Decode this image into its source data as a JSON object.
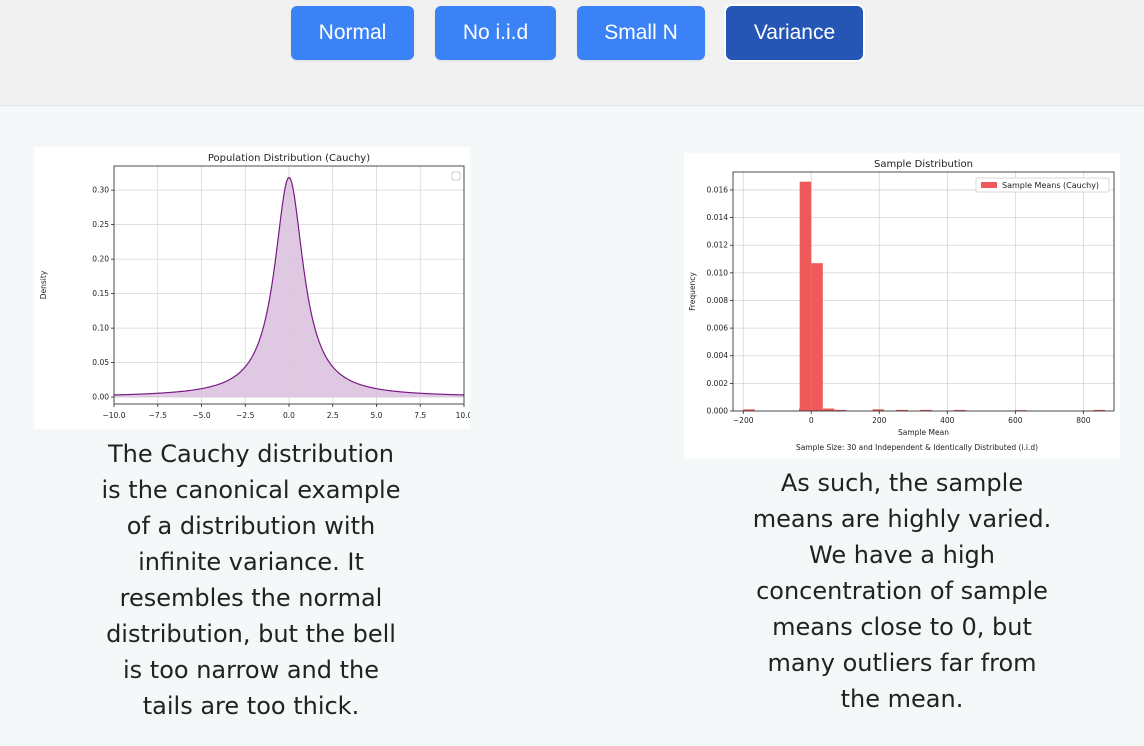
{
  "tabs": [
    {
      "label": "Normal",
      "active": false
    },
    {
      "label": "No i.i.d",
      "active": false
    },
    {
      "label": "Small N",
      "active": false
    },
    {
      "label": "Variance",
      "active": true
    }
  ],
  "colors": {
    "tab_button": "#3b82f6",
    "tab_button_active": "#2556b5",
    "cauchy_line": "#7b1a86",
    "cauchy_fill": "#dcc3df",
    "histogram_bar": "#ee5a5a"
  },
  "left": {
    "description_lines": [
      "The Cauchy distribution",
      "is the canonical example",
      "of a distribution with",
      "infinite variance. It",
      "resembles the normal",
      "distribution, but the bell",
      "is too narrow and the",
      "tails are too thick."
    ]
  },
  "right": {
    "description_lines": [
      "As such, the sample",
      "means are highly varied.",
      "We have a high",
      "concentration of sample",
      "means close to 0, but",
      "many outliers far from",
      "the mean."
    ]
  },
  "chart_data": [
    {
      "type": "area",
      "title": "Population Distribution (Cauchy)",
      "xlabel": "",
      "ylabel": "Density",
      "xlim": [
        -10,
        10
      ],
      "ylim": [
        -0.01,
        0.335
      ],
      "x_ticks": [
        -10.0,
        -7.5,
        -5.0,
        -2.5,
        0.0,
        2.5,
        5.0,
        7.5,
        10.0
      ],
      "x_tick_labels": [
        "−10.0",
        "−7.5",
        "−5.0",
        "−2.5",
        "0.0",
        "2.5",
        "5.0",
        "7.5",
        "10.0"
      ],
      "y_ticks": [
        0.0,
        0.05,
        0.1,
        0.15,
        0.2,
        0.25,
        0.3
      ],
      "y_tick_labels": [
        "0.00",
        "0.05",
        "0.10",
        "0.15",
        "0.20",
        "0.25",
        "0.30"
      ],
      "grid": true,
      "legend": "top-right (empty)",
      "series": [
        {
          "x": [
            -10,
            -8,
            -6,
            -5,
            -4,
            -3,
            -2.5,
            -2,
            -1.5,
            -1,
            -0.75,
            -0.5,
            -0.25,
            0,
            0.25,
            0.5,
            0.75,
            1,
            1.5,
            2,
            2.5,
            3,
            4,
            5,
            6,
            8,
            10
          ],
          "y": [
            0.0032,
            0.0049,
            0.0086,
            0.0122,
            0.0187,
            0.0318,
            0.0439,
            0.0637,
            0.0979,
            0.1592,
            0.2037,
            0.2546,
            0.2996,
            0.3183,
            0.2996,
            0.2546,
            0.2037,
            0.1592,
            0.0979,
            0.0637,
            0.0439,
            0.0318,
            0.0187,
            0.0122,
            0.0086,
            0.0049,
            0.0032
          ]
        }
      ]
    },
    {
      "type": "bar",
      "title": "Sample Distribution",
      "xlabel": "Sample Mean",
      "ylabel": "Frequency",
      "xlim": [
        -230,
        890
      ],
      "ylim": [
        0,
        0.0173
      ],
      "x_ticks": [
        -200,
        0,
        200,
        400,
        600,
        800
      ],
      "x_tick_labels": [
        "−200",
        "0",
        "200",
        "400",
        "600",
        "800"
      ],
      "y_ticks": [
        0.0,
        0.002,
        0.004,
        0.006,
        0.008,
        0.01,
        0.012,
        0.014,
        0.016
      ],
      "y_tick_labels": [
        "0.000",
        "0.002",
        "0.004",
        "0.006",
        "0.008",
        "0.010",
        "0.012",
        "0.014",
        "0.016"
      ],
      "grid": true,
      "legend": "top-right",
      "annotation": "Sample Size: 30 and Independent & Identically Distributed (i.i.d)",
      "series": [
        {
          "name": "Sample Means (Cauchy)",
          "bin_width": 34,
          "bins": [
            {
              "x0": -200,
              "value": 0.00012
            },
            {
              "x0": -36,
              "value": 0.00018
            },
            {
              "x0": -34,
              "value": 0.0166
            },
            {
              "x0": 0,
              "value": 0.0107
            },
            {
              "x0": 34,
              "value": 0.00018
            },
            {
              "x0": 68,
              "value": 8e-05
            },
            {
              "x0": 180,
              "value": 0.00012
            },
            {
              "x0": 250,
              "value": 8e-05
            },
            {
              "x0": 320,
              "value": 8e-05
            },
            {
              "x0": 420,
              "value": 8e-05
            },
            {
              "x0": 600,
              "value": 6e-05
            },
            {
              "x0": 830,
              "value": 8e-05
            }
          ]
        }
      ]
    }
  ]
}
